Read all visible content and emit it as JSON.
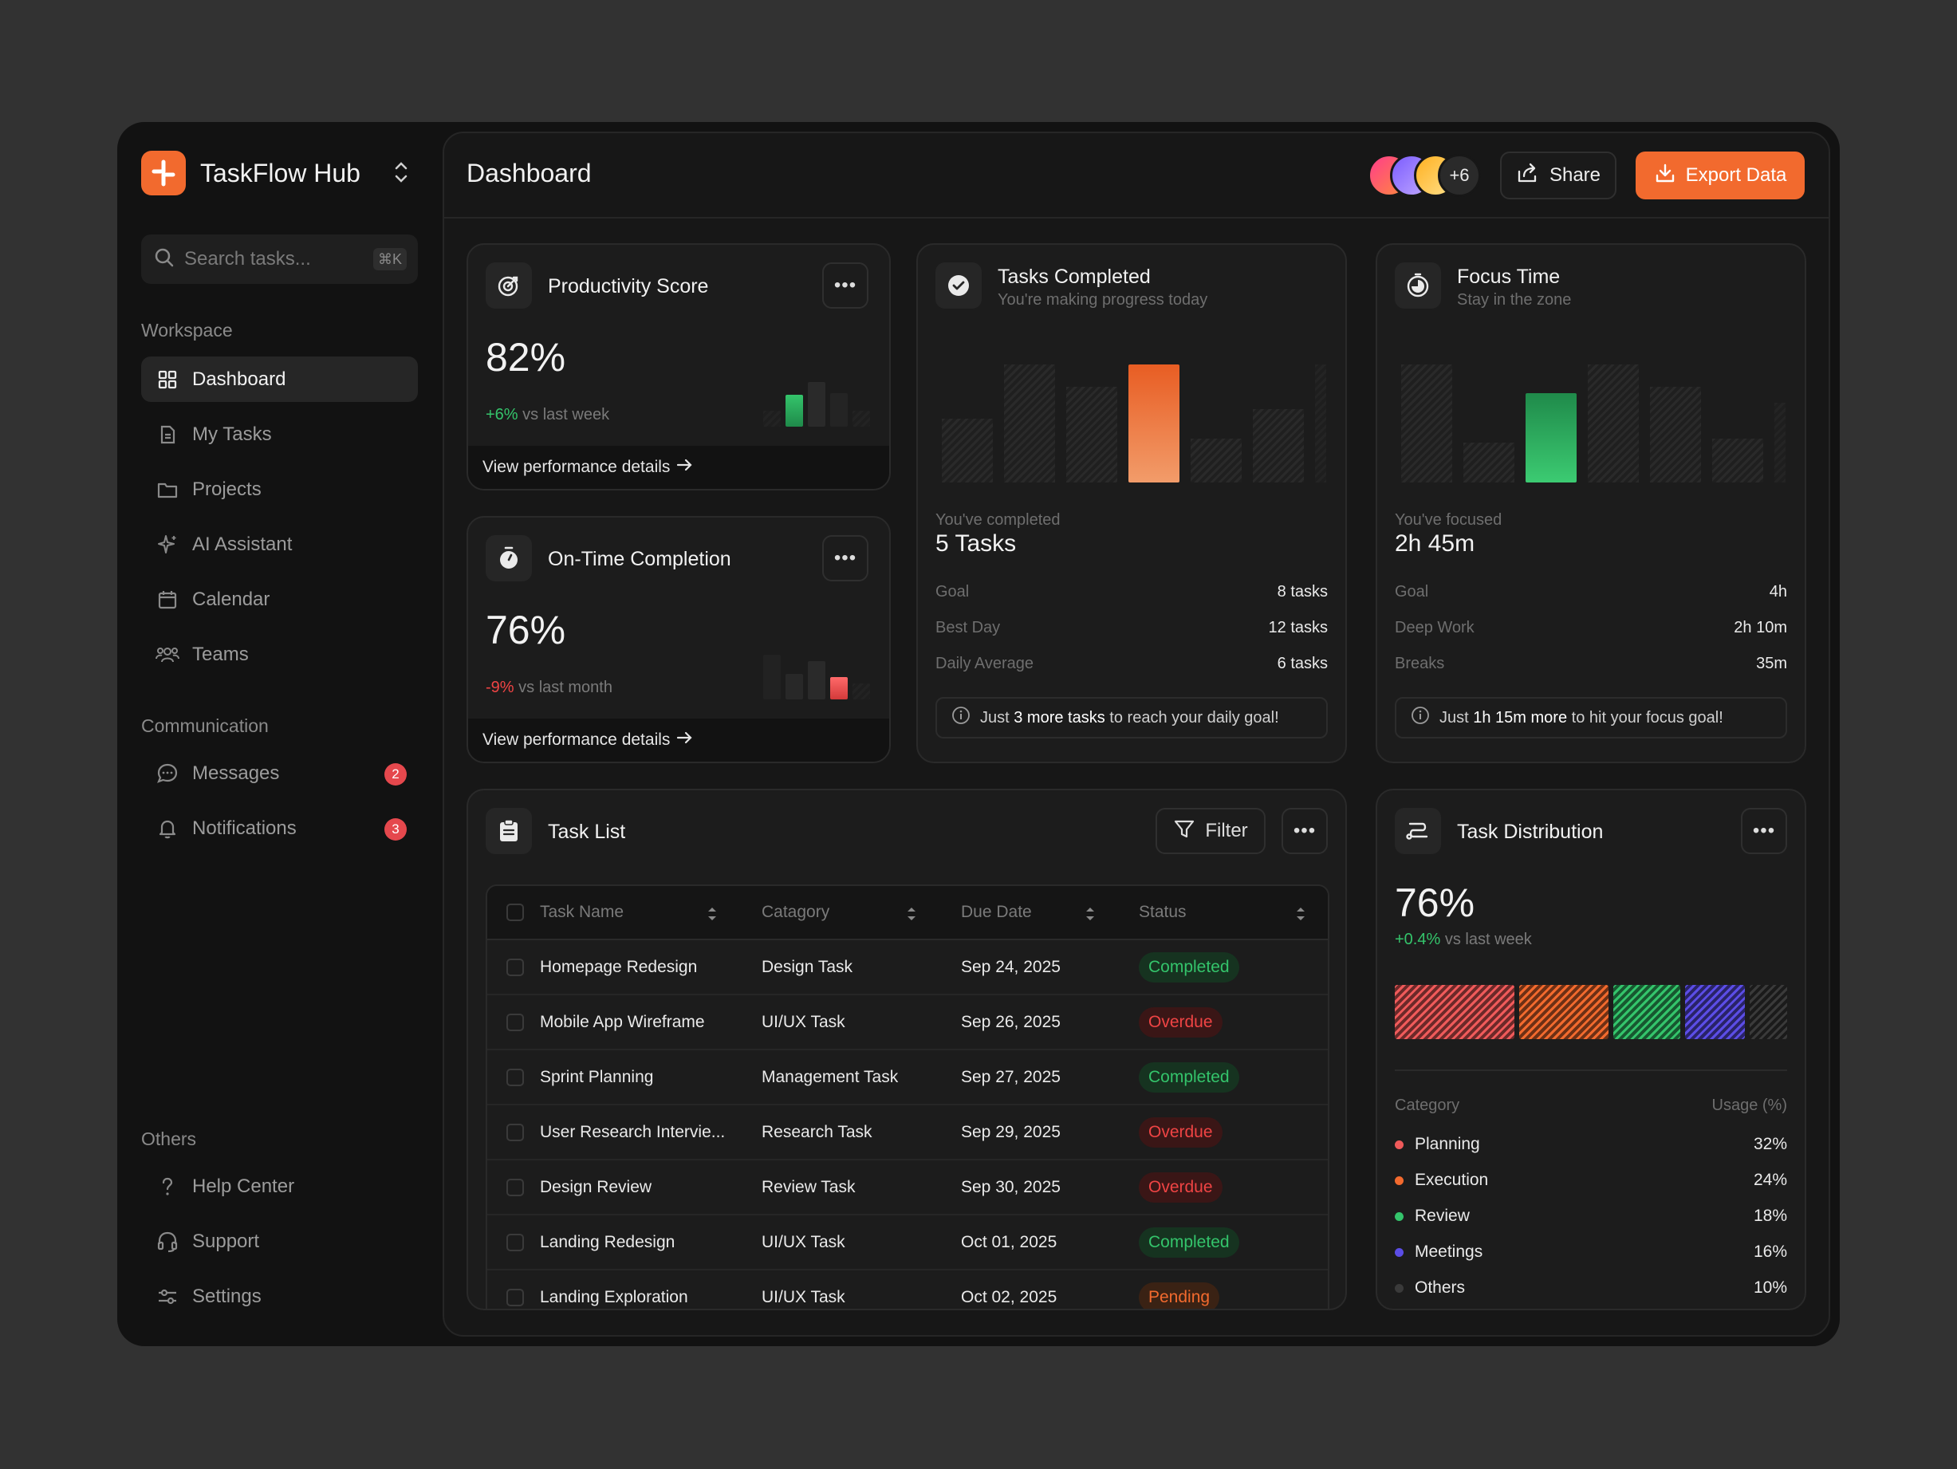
{
  "brand": {
    "name": "TaskFlow Hub"
  },
  "search": {
    "placeholder": "Search tasks...",
    "shortcut": "⌘K"
  },
  "sidebar": {
    "workspace_label": "Workspace",
    "workspace_items": [
      {
        "label": "Dashboard",
        "icon": "grid-icon",
        "active": true
      },
      {
        "label": "My Tasks",
        "icon": "document-icon"
      },
      {
        "label": "Projects",
        "icon": "folder-icon"
      },
      {
        "label": "AI Assistant",
        "icon": "sparkle-icon"
      },
      {
        "label": "Calendar",
        "icon": "calendar-icon"
      },
      {
        "label": "Teams",
        "icon": "users-icon"
      }
    ],
    "communication_label": "Communication",
    "communication_items": [
      {
        "label": "Messages",
        "icon": "chat-icon",
        "badge": "2"
      },
      {
        "label": "Notifications",
        "icon": "bell-icon",
        "badge": "3"
      }
    ],
    "others_label": "Others",
    "others_items": [
      {
        "label": "Help Center",
        "icon": "help-icon"
      },
      {
        "label": "Support",
        "icon": "headset-icon"
      },
      {
        "label": "Settings",
        "icon": "sliders-icon"
      }
    ]
  },
  "header": {
    "title": "Dashboard",
    "avatar_more": "+6",
    "share_label": "Share",
    "export_label": "Export Data"
  },
  "productivity": {
    "title": "Productivity Score",
    "value": "82%",
    "delta": "+6%",
    "delta_suffix": "vs last week",
    "footer": "View performance details"
  },
  "ontime": {
    "title": "On-Time Completion",
    "value": "76%",
    "delta": "-9%",
    "delta_suffix": "vs last month",
    "footer": "View performance details"
  },
  "tasks_completed": {
    "title": "Tasks Completed",
    "subtitle": "You're making progress today",
    "stat_label": "You've completed",
    "stat_value": "5 Tasks",
    "rows": [
      {
        "k": "Goal",
        "v": "8 tasks"
      },
      {
        "k": "Best Day",
        "v": "12 tasks"
      },
      {
        "k": "Daily Average",
        "v": "6 tasks"
      }
    ],
    "tip_pre": "Just",
    "tip_bold": "3 more tasks",
    "tip_post": "to reach your daily goal!"
  },
  "focus": {
    "title": "Focus Time",
    "subtitle": "Stay in the zone",
    "stat_label": "You've focused",
    "stat_value": "2h 45m",
    "rows": [
      {
        "k": "Goal",
        "v": "4h"
      },
      {
        "k": "Deep Work",
        "v": "2h 10m"
      },
      {
        "k": "Breaks",
        "v": "35m"
      }
    ],
    "tip_pre": "Just",
    "tip_bold": "1h 15m more",
    "tip_post": "to hit your focus goal!"
  },
  "task_list": {
    "title": "Task List",
    "filter_label": "Filter",
    "columns": [
      "Task Name",
      "Catagory",
      "Due Date",
      "Status"
    ],
    "rows": [
      {
        "name": "Homepage Redesign",
        "category": "Design Task",
        "due": "Sep 24, 2025",
        "status": "Completed"
      },
      {
        "name": "Mobile App Wireframe",
        "category": "UI/UX Task",
        "due": "Sep 26, 2025",
        "status": "Overdue"
      },
      {
        "name": "Sprint Planning",
        "category": "Management Task",
        "due": "Sep 27, 2025",
        "status": "Completed"
      },
      {
        "name": "User Research Intervie...",
        "category": "Research Task",
        "due": "Sep 29, 2025",
        "status": "Overdue"
      },
      {
        "name": "Design Review",
        "category": "Review Task",
        "due": "Sep 30, 2025",
        "status": "Overdue"
      },
      {
        "name": "Landing Redesign",
        "category": "UI/UX Task",
        "due": "Oct 01, 2025",
        "status": "Completed"
      },
      {
        "name": "Landing Exploration",
        "category": "UI/UX Task",
        "due": "Oct 02, 2025",
        "status": "Pending"
      }
    ]
  },
  "distribution": {
    "title": "Task Distribution",
    "value": "76%",
    "delta": "+0.4%",
    "delta_suffix": "vs last week",
    "col_category": "Category",
    "col_usage": "Usage (%)",
    "items": [
      {
        "name": "Planning",
        "pct": "32%",
        "value": 32,
        "color": "#ef5a5a"
      },
      {
        "name": "Execution",
        "pct": "24%",
        "value": 24,
        "color": "#f26a2e"
      },
      {
        "name": "Review",
        "pct": "18%",
        "value": 18,
        "color": "#34c46b"
      },
      {
        "name": "Meetings",
        "pct": "16%",
        "value": 16,
        "color": "#5b4de6"
      },
      {
        "name": "Others",
        "pct": "10%",
        "value": 10,
        "color": "#3a3a3a"
      }
    ]
  },
  "colors": {
    "accent": "#f26a2e",
    "success": "#34c46b",
    "danger": "#ef4444",
    "pending": "#f26a2e"
  }
}
